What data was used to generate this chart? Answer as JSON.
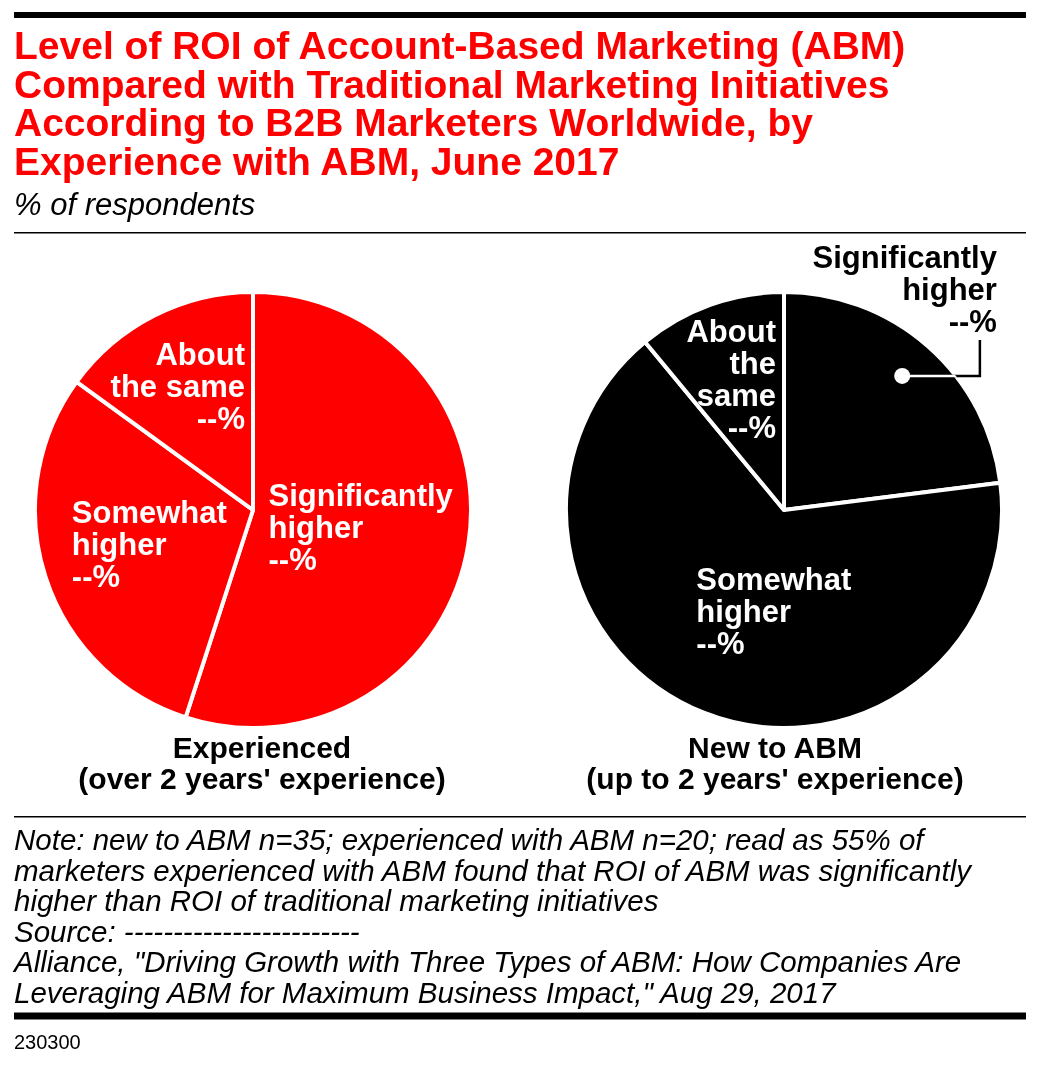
{
  "chart_data": [
    {
      "type": "pie",
      "title": "Level of ROI of Account-Based Marketing (ABM) Compared with Traditional Marketing Initiatives According to B2B Marketers Worldwide, by Experience with ABM, June 2017",
      "subtitle": "% of respondents",
      "xlabel": "Experienced\n(over 2 years' experience)",
      "categories": [
        "Significantly higher",
        "Somewhat higher",
        "About the same"
      ],
      "values": [
        55,
        30,
        15
      ],
      "colors": [
        "#ff0000",
        "#ff0000",
        "#ff0000"
      ],
      "value_labels": [
        "--%",
        "--%",
        "--%"
      ]
    },
    {
      "type": "pie",
      "xlabel": "New to ABM\n(up to 2 years' experience)",
      "categories": [
        "Significantly higher",
        "Somewhat higher",
        "About the same"
      ],
      "values": [
        23,
        66,
        11
      ],
      "colors": [
        "#000000",
        "#000000",
        "#000000"
      ],
      "value_labels": [
        "--%",
        "--%",
        "--%"
      ],
      "annotations": [
        "Note: new to ABM n=35; experienced with ABM n=20; read as 55% of marketers experienced with ABM found that ROI of ABM was significantly higher than ROI of traditional marketing initiatives",
        "Source: ------------------------",
        "Alliance, \"Driving Growth with Three Types of ABM: How Companies Are Leveraging ABM for Maximum Business Impact,\" Aug 29, 2017",
        "230300"
      ]
    }
  ]
}
